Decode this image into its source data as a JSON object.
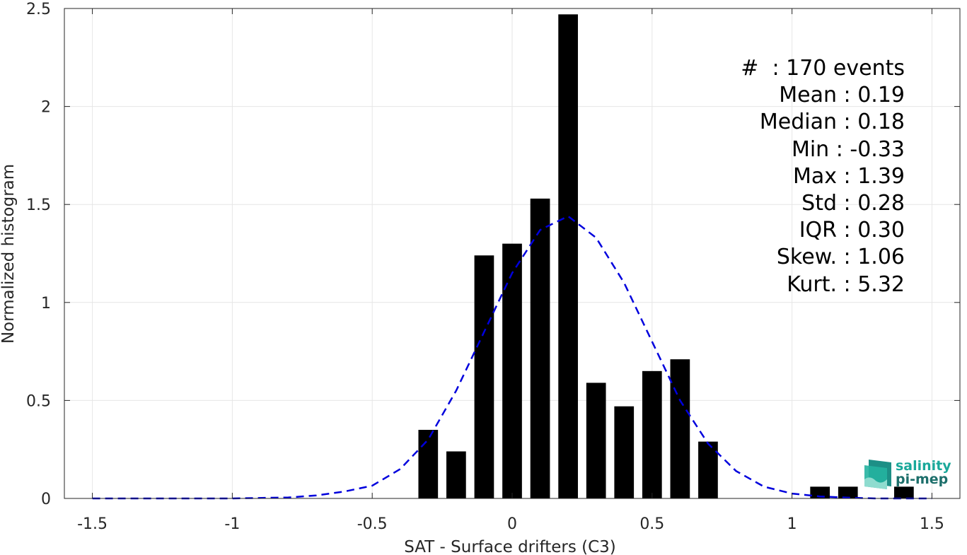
{
  "chart_data": {
    "type": "bar",
    "xlabel": "SAT - Surface drifters (C3)",
    "ylabel": "Normalized histogram",
    "xlim": [
      -1.6,
      1.6
    ],
    "ylim": [
      0,
      2.5
    ],
    "xticks": [
      -1.5,
      -1,
      -0.5,
      0,
      0.5,
      1,
      1.5
    ],
    "xtick_labels": [
      "-1.5",
      "-1",
      "-0.5",
      "0",
      "0.5",
      "1",
      "1.5"
    ],
    "yticks": [
      0,
      0.5,
      1,
      1.5,
      2,
      2.5
    ],
    "ytick_labels": [
      "0",
      "0.5",
      "1",
      "1.5",
      "2",
      "2.5"
    ],
    "grid": true,
    "bar_color": "#000000",
    "bar_width": 0.07,
    "bars": [
      {
        "x": -0.3,
        "y": 0.35
      },
      {
        "x": -0.2,
        "y": 0.24
      },
      {
        "x": -0.1,
        "y": 1.24
      },
      {
        "x": 0.0,
        "y": 1.3
      },
      {
        "x": 0.1,
        "y": 1.53
      },
      {
        "x": 0.2,
        "y": 2.47
      },
      {
        "x": 0.3,
        "y": 0.59
      },
      {
        "x": 0.4,
        "y": 0.47
      },
      {
        "x": 0.5,
        "y": 0.65
      },
      {
        "x": 0.6,
        "y": 0.71
      },
      {
        "x": 0.7,
        "y": 0.29
      },
      {
        "x": 1.1,
        "y": 0.06
      },
      {
        "x": 1.2,
        "y": 0.06
      },
      {
        "x": 1.4,
        "y": 0.06
      }
    ],
    "fit_curve": {
      "style": "dashed",
      "color": "#0000dd",
      "points": [
        [
          -1.5,
          0.0
        ],
        [
          -1.0,
          0.0
        ],
        [
          -0.8,
          0.005
        ],
        [
          -0.7,
          0.015
        ],
        [
          -0.6,
          0.035
        ],
        [
          -0.5,
          0.065
        ],
        [
          -0.4,
          0.15
        ],
        [
          -0.3,
          0.3
        ],
        [
          -0.2,
          0.55
        ],
        [
          -0.1,
          0.85
        ],
        [
          0.0,
          1.15
        ],
        [
          0.1,
          1.37
        ],
        [
          0.2,
          1.44
        ],
        [
          0.3,
          1.33
        ],
        [
          0.4,
          1.1
        ],
        [
          0.5,
          0.8
        ],
        [
          0.6,
          0.5
        ],
        [
          0.7,
          0.28
        ],
        [
          0.8,
          0.14
        ],
        [
          0.9,
          0.06
        ],
        [
          1.0,
          0.025
        ],
        [
          1.1,
          0.01
        ],
        [
          1.2,
          0.004
        ],
        [
          1.3,
          0.0
        ],
        [
          1.5,
          0.0
        ]
      ]
    },
    "stats": [
      "#  : 170 events",
      "Mean : 0.19",
      "Median : 0.18",
      "Min : -0.33",
      "Max : 1.39",
      "Std : 0.28",
      "IQR : 0.30",
      "Skew. : 1.06",
      "Kurt. : 5.32"
    ]
  },
  "logo": {
    "line1": "salinity",
    "line2": "pi-mep",
    "color1": "#1aa89a",
    "color2": "#1d6f6b"
  }
}
